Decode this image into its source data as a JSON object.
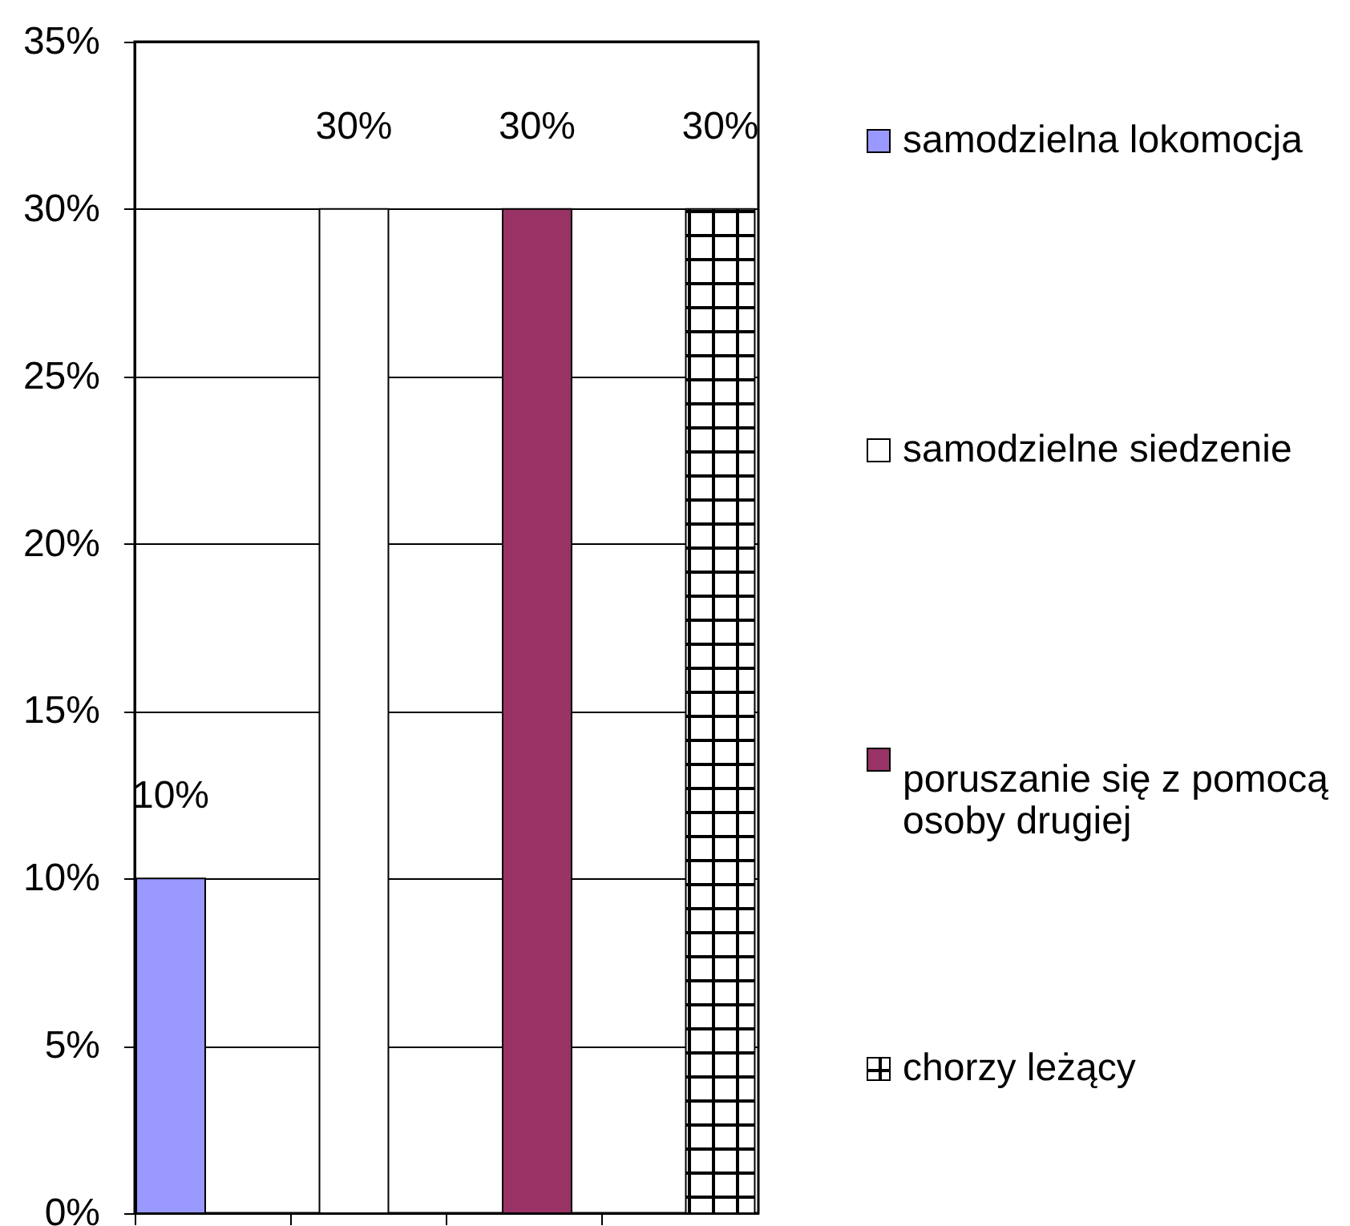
{
  "chart_data": {
    "type": "bar",
    "categories": [
      null,
      null,
      null,
      null
    ],
    "series": [
      {
        "name": "samodzielna lokomocja",
        "color": "#9999ff",
        "values": [
          10,
          null,
          null,
          null
        ],
        "value_labels": [
          "10%",
          null,
          null,
          null
        ]
      },
      {
        "name": "samodzielne siedzenie",
        "color": "#ffffff",
        "values": [
          null,
          30,
          null,
          null
        ],
        "value_labels": [
          null,
          "30%",
          null,
          null
        ]
      },
      {
        "name": "poruszanie się z pomocą osoby drugiej",
        "color": "#993366",
        "values": [
          null,
          null,
          30,
          null
        ],
        "value_labels": [
          null,
          null,
          "30%",
          null
        ]
      },
      {
        "name": "chorzy leżący",
        "color": "#000000",
        "values": [
          null,
          null,
          null,
          30
        ],
        "value_labels": [
          null,
          null,
          null,
          "30%"
        ]
      }
    ],
    "ylim": [
      0,
      35
    ],
    "yticks": [
      {
        "value": 0,
        "label": "0%"
      },
      {
        "value": 5,
        "label": "5%"
      },
      {
        "value": 10,
        "label": "10%"
      },
      {
        "value": 15,
        "label": "15%"
      },
      {
        "value": 20,
        "label": "20%"
      },
      {
        "value": 25,
        "label": "25%"
      },
      {
        "value": 30,
        "label": "30%"
      },
      {
        "value": 35,
        "label": "35%"
      }
    ],
    "grid": "y",
    "legend": "right"
  }
}
